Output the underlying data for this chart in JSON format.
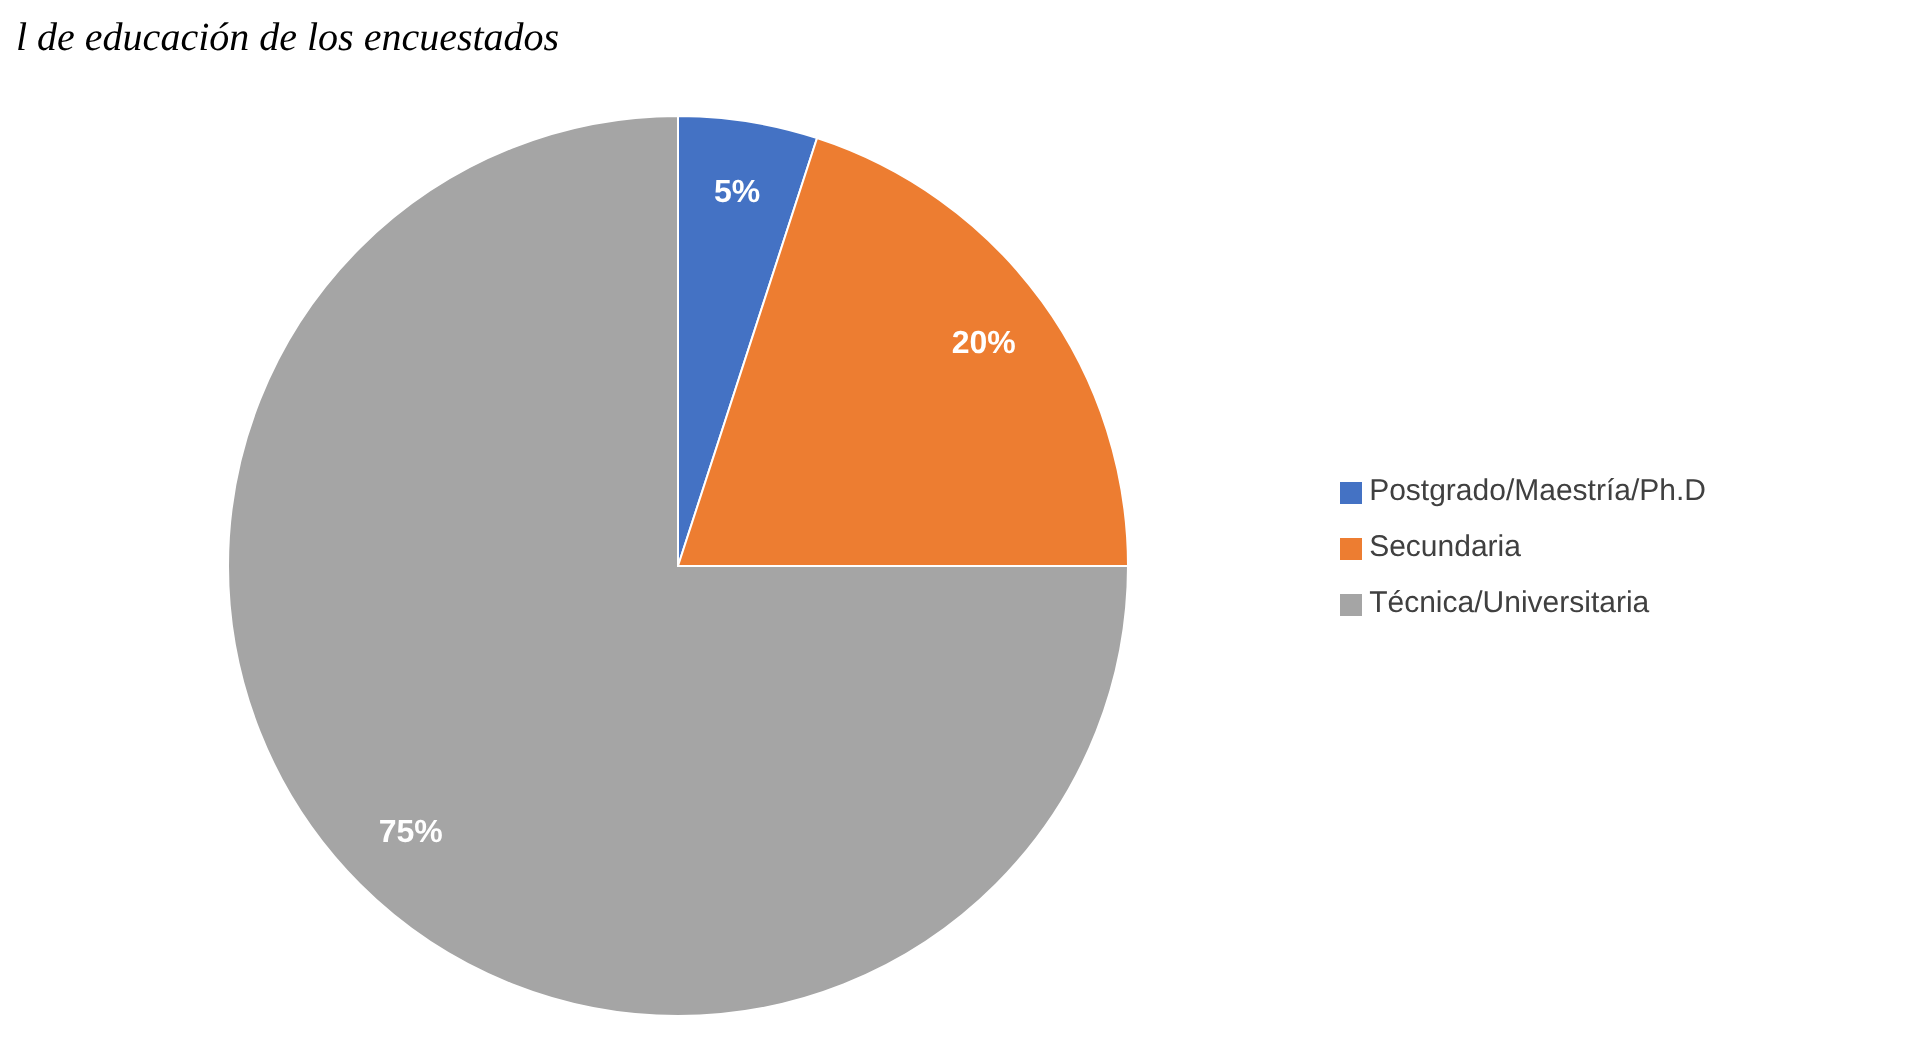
{
  "chart_data": {
    "type": "pie",
    "title": "l de educación de los encuestados",
    "categories": [
      "Postgrado/Maestría/Ph.D",
      "Secundaria",
      "Técnica/Universitaria"
    ],
    "values": [
      5,
      20,
      75
    ],
    "colors": [
      "#4472c4",
      "#ed7d31",
      "#a5a5a5"
    ],
    "value_labels": [
      "5%",
      "20%",
      "75%"
    ],
    "legend": "right"
  }
}
